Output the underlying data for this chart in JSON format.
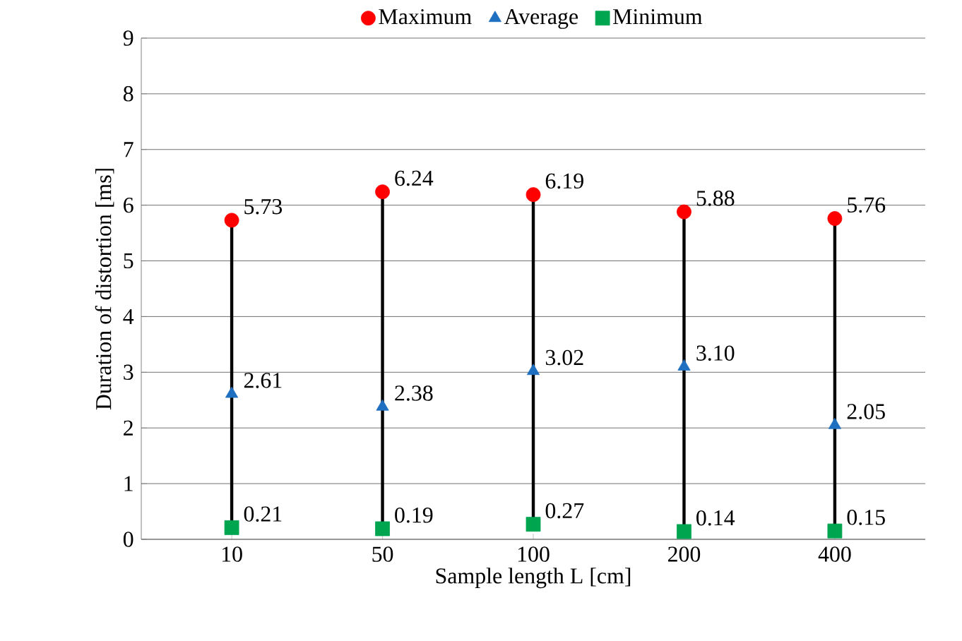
{
  "chart_data": {
    "type": "scatter",
    "xlabel": "Sample length L [cm]",
    "ylabel": "Duration of distortion [ms]",
    "categories": [
      "10",
      "50",
      "100",
      "200",
      "400"
    ],
    "ylim": [
      0,
      9
    ],
    "yticks": [
      0,
      1,
      2,
      3,
      4,
      5,
      6,
      7,
      8,
      9
    ],
    "grid": "y",
    "legend": "top",
    "series": [
      {
        "type": "line",
        "color": "#000000",
        "x": [
          "10",
          "10"
        ],
        "values": [
          0.21,
          5.73
        ]
      },
      {
        "type": "line",
        "color": "#000000",
        "x": [
          "50",
          "50"
        ],
        "values": [
          0.19,
          6.24
        ]
      },
      {
        "type": "line",
        "color": "#000000",
        "x": [
          "100",
          "100"
        ],
        "values": [
          0.27,
          6.19
        ]
      },
      {
        "type": "line",
        "color": "#000000",
        "x": [
          "200",
          "200"
        ],
        "values": [
          0.14,
          5.88
        ]
      },
      {
        "type": "line",
        "color": "#000000",
        "x": [
          "400",
          "400"
        ],
        "values": [
          0.15,
          5.76
        ]
      },
      {
        "name": "Maximum",
        "color": "#ff0000",
        "marker": "circle",
        "values": [
          5.73,
          6.24,
          6.19,
          5.88,
          5.76
        ],
        "value_labels": [
          "5.73",
          "6.24",
          "6.19",
          "5.88",
          "5.76"
        ]
      },
      {
        "name": "Average",
        "color": "#1f6fc0",
        "marker": "triangle",
        "values": [
          2.61,
          2.38,
          3.02,
          3.1,
          2.05
        ],
        "value_labels": [
          "2.61",
          "2.38",
          "3.02",
          "3.10",
          "2.05"
        ]
      },
      {
        "name": "Minimum",
        "color": "#00a550",
        "marker": "square",
        "values": [
          0.21,
          0.19,
          0.27,
          0.14,
          0.15
        ],
        "value_labels": [
          "0.21",
          "0.19",
          "0.27",
          "0.14",
          "0.15"
        ]
      }
    ]
  }
}
